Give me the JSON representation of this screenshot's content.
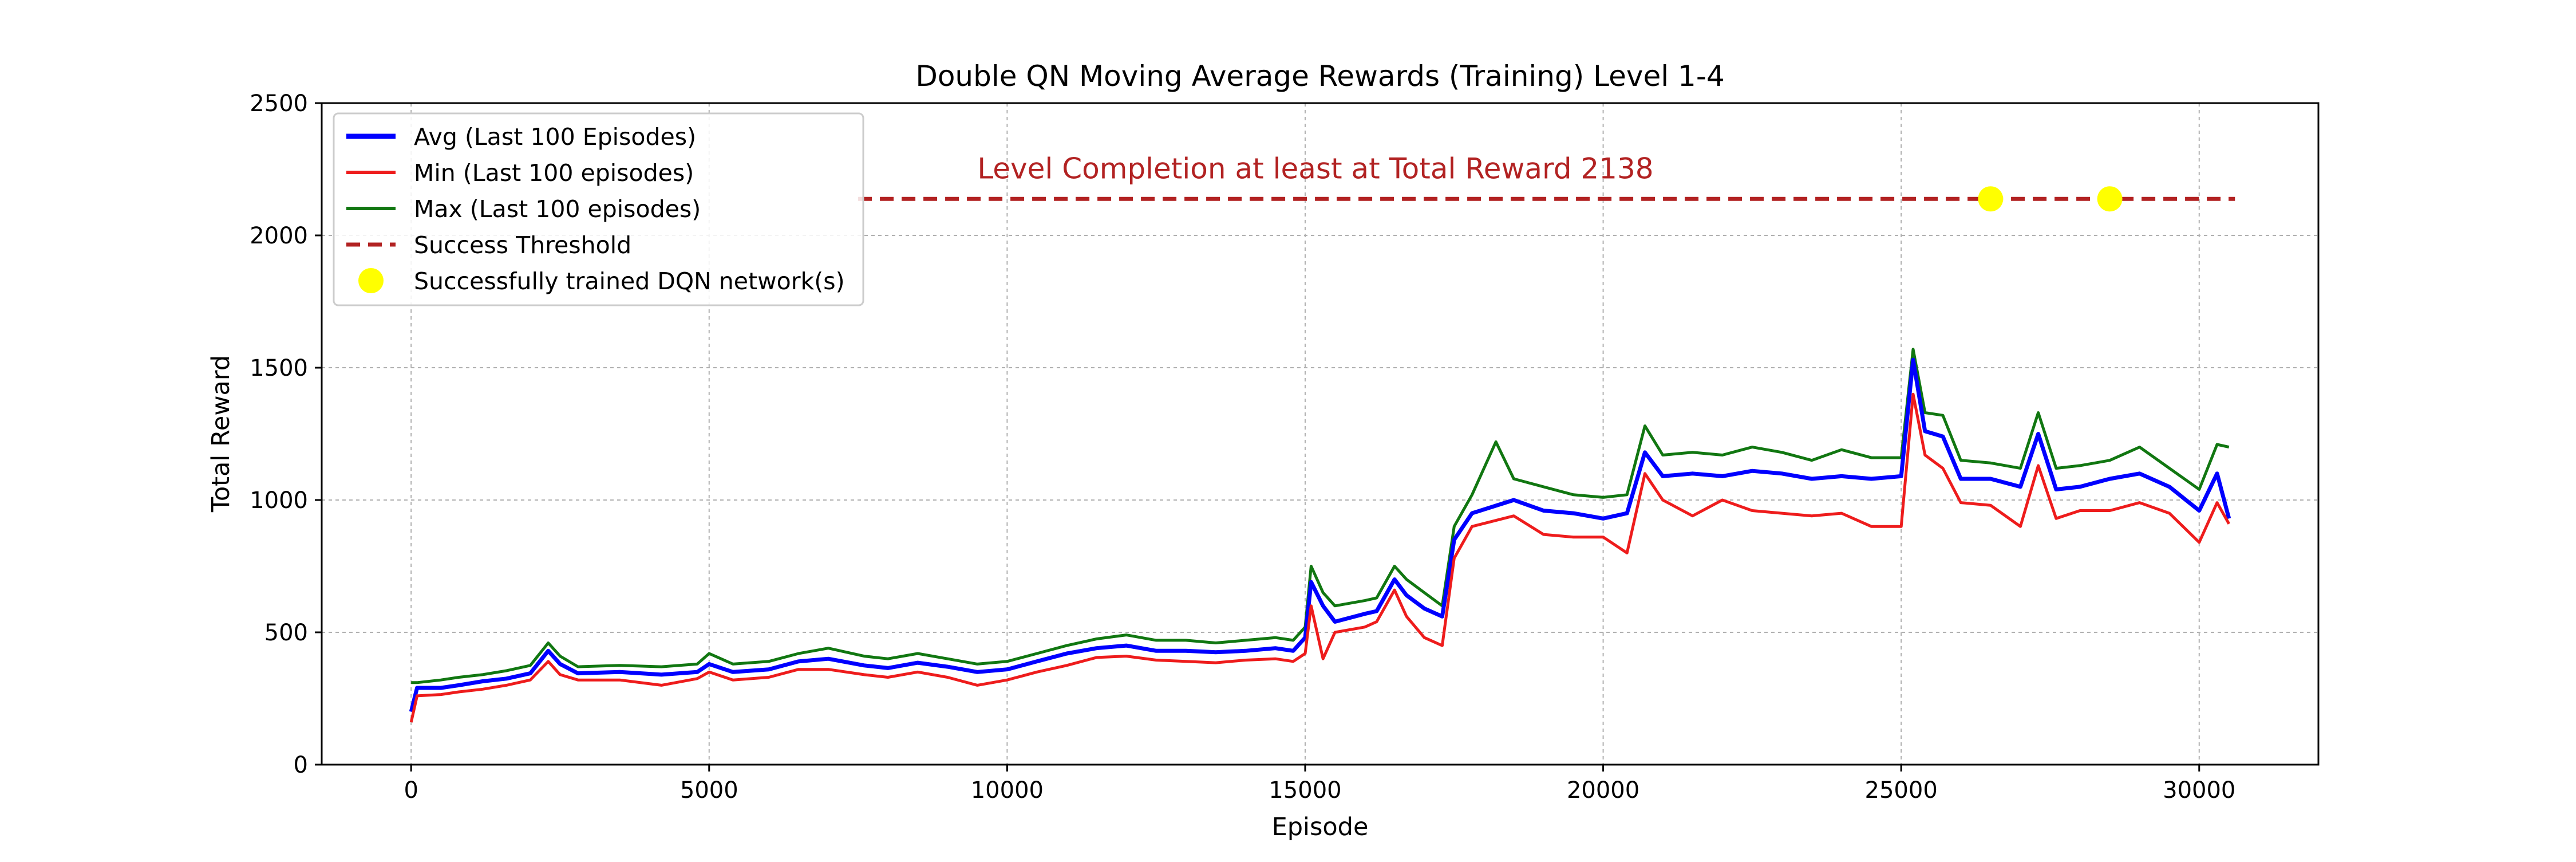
{
  "chart_data": {
    "type": "line",
    "title": "Double QN Moving Average Rewards (Training) Level 1-4",
    "xlabel": "Episode",
    "ylabel": "Total Reward",
    "xlim": [
      -1500,
      32000
    ],
    "ylim": [
      0,
      2500
    ],
    "x_ticks": [
      0,
      5000,
      10000,
      15000,
      20000,
      25000,
      30000
    ],
    "y_ticks": [
      0,
      500,
      1000,
      1500,
      2000,
      2500
    ],
    "grid": true,
    "legend_position": "upper-left",
    "threshold": {
      "value": 2138,
      "x_start": 7500,
      "x_end": 30600,
      "color": "#b22222"
    },
    "annotation": {
      "text": "Level Completion at least at Total Reward 2138",
      "x": 9500,
      "y": 2215,
      "color": "#b22222"
    },
    "legend": [
      {
        "label": "Avg (Last 100 Episodes)",
        "kind": "line",
        "color": "#0000ff"
      },
      {
        "label": "Min (Last 100 episodes)",
        "kind": "line",
        "color": "#ee1c1c"
      },
      {
        "label": "Max (Last 100 episodes)",
        "kind": "line",
        "color": "#117711"
      },
      {
        "label": "Success Threshold",
        "kind": "dash",
        "color": "#b22222"
      },
      {
        "label": "Successfully trained DQN network(s)",
        "kind": "dot",
        "color": "#ffff00"
      }
    ],
    "success_markers": [
      {
        "x": 26500,
        "y": 2138
      },
      {
        "x": 28500,
        "y": 2138
      }
    ],
    "series": [
      {
        "name": "Avg (Last 100 Episodes)",
        "color": "#0000ff",
        "points": [
          [
            0,
            200
          ],
          [
            100,
            290
          ],
          [
            500,
            290
          ],
          [
            800,
            300
          ],
          [
            1200,
            315
          ],
          [
            1600,
            325
          ],
          [
            2000,
            345
          ],
          [
            2300,
            430
          ],
          [
            2500,
            380
          ],
          [
            2800,
            345
          ],
          [
            3500,
            350
          ],
          [
            4200,
            340
          ],
          [
            4800,
            350
          ],
          [
            5000,
            380
          ],
          [
            5400,
            350
          ],
          [
            6000,
            360
          ],
          [
            6500,
            390
          ],
          [
            7000,
            400
          ],
          [
            7600,
            375
          ],
          [
            8000,
            365
          ],
          [
            8500,
            385
          ],
          [
            9000,
            370
          ],
          [
            9500,
            350
          ],
          [
            10000,
            360
          ],
          [
            10500,
            390
          ],
          [
            11000,
            420
          ],
          [
            11500,
            440
          ],
          [
            12000,
            450
          ],
          [
            12500,
            430
          ],
          [
            13000,
            430
          ],
          [
            13500,
            425
          ],
          [
            14000,
            430
          ],
          [
            14500,
            440
          ],
          [
            14800,
            430
          ],
          [
            15000,
            480
          ],
          [
            15100,
            690
          ],
          [
            15300,
            600
          ],
          [
            15500,
            540
          ],
          [
            16000,
            570
          ],
          [
            16200,
            580
          ],
          [
            16500,
            700
          ],
          [
            16700,
            640
          ],
          [
            17000,
            590
          ],
          [
            17300,
            560
          ],
          [
            17500,
            850
          ],
          [
            17800,
            950
          ],
          [
            18500,
            1000
          ],
          [
            19000,
            960
          ],
          [
            19500,
            950
          ],
          [
            20000,
            930
          ],
          [
            20400,
            950
          ],
          [
            20700,
            1180
          ],
          [
            21000,
            1090
          ],
          [
            21500,
            1100
          ],
          [
            22000,
            1090
          ],
          [
            22500,
            1110
          ],
          [
            23000,
            1100
          ],
          [
            23500,
            1080
          ],
          [
            24000,
            1090
          ],
          [
            24500,
            1080
          ],
          [
            25000,
            1090
          ],
          [
            25200,
            1530
          ],
          [
            25400,
            1260
          ],
          [
            25700,
            1240
          ],
          [
            26000,
            1080
          ],
          [
            26500,
            1080
          ],
          [
            27000,
            1050
          ],
          [
            27300,
            1250
          ],
          [
            27600,
            1040
          ],
          [
            28000,
            1050
          ],
          [
            28500,
            1080
          ],
          [
            29000,
            1100
          ],
          [
            29500,
            1050
          ],
          [
            30000,
            960
          ],
          [
            30300,
            1100
          ],
          [
            30500,
            930
          ]
        ]
      },
      {
        "name": "Min (Last 100 episodes)",
        "color": "#ee1c1c",
        "points": [
          [
            0,
            160
          ],
          [
            100,
            260
          ],
          [
            500,
            265
          ],
          [
            800,
            275
          ],
          [
            1200,
            285
          ],
          [
            1600,
            300
          ],
          [
            2000,
            320
          ],
          [
            2300,
            390
          ],
          [
            2500,
            340
          ],
          [
            2800,
            320
          ],
          [
            3500,
            320
          ],
          [
            4200,
            300
          ],
          [
            4800,
            325
          ],
          [
            5000,
            350
          ],
          [
            5400,
            320
          ],
          [
            6000,
            330
          ],
          [
            6500,
            360
          ],
          [
            7000,
            360
          ],
          [
            7600,
            340
          ],
          [
            8000,
            330
          ],
          [
            8500,
            350
          ],
          [
            9000,
            330
          ],
          [
            9500,
            300
          ],
          [
            10000,
            320
          ],
          [
            10500,
            350
          ],
          [
            11000,
            375
          ],
          [
            11500,
            405
          ],
          [
            12000,
            410
          ],
          [
            12500,
            395
          ],
          [
            13000,
            390
          ],
          [
            13500,
            385
          ],
          [
            14000,
            395
          ],
          [
            14500,
            400
          ],
          [
            14800,
            390
          ],
          [
            15000,
            420
          ],
          [
            15100,
            600
          ],
          [
            15300,
            400
          ],
          [
            15500,
            500
          ],
          [
            16000,
            520
          ],
          [
            16200,
            540
          ],
          [
            16500,
            660
          ],
          [
            16700,
            560
          ],
          [
            17000,
            480
          ],
          [
            17300,
            450
          ],
          [
            17500,
            780
          ],
          [
            17800,
            900
          ],
          [
            18500,
            940
          ],
          [
            19000,
            870
          ],
          [
            19500,
            860
          ],
          [
            20000,
            860
          ],
          [
            20400,
            800
          ],
          [
            20700,
            1100
          ],
          [
            21000,
            1000
          ],
          [
            21500,
            940
          ],
          [
            22000,
            1000
          ],
          [
            22500,
            960
          ],
          [
            23000,
            950
          ],
          [
            23500,
            940
          ],
          [
            24000,
            950
          ],
          [
            24500,
            900
          ],
          [
            25000,
            900
          ],
          [
            25200,
            1400
          ],
          [
            25400,
            1170
          ],
          [
            25700,
            1120
          ],
          [
            26000,
            990
          ],
          [
            26500,
            980
          ],
          [
            27000,
            900
          ],
          [
            27300,
            1130
          ],
          [
            27600,
            930
          ],
          [
            28000,
            960
          ],
          [
            28500,
            960
          ],
          [
            29000,
            990
          ],
          [
            29500,
            950
          ],
          [
            30000,
            840
          ],
          [
            30300,
            990
          ],
          [
            30500,
            910
          ]
        ]
      },
      {
        "name": "Max (Last 100 episodes)",
        "color": "#117711",
        "points": [
          [
            0,
            310
          ],
          [
            100,
            310
          ],
          [
            500,
            320
          ],
          [
            800,
            330
          ],
          [
            1200,
            340
          ],
          [
            1600,
            355
          ],
          [
            2000,
            375
          ],
          [
            2300,
            460
          ],
          [
            2500,
            410
          ],
          [
            2800,
            370
          ],
          [
            3500,
            375
          ],
          [
            4200,
            370
          ],
          [
            4800,
            380
          ],
          [
            5000,
            420
          ],
          [
            5400,
            380
          ],
          [
            6000,
            390
          ],
          [
            6500,
            420
          ],
          [
            7000,
            440
          ],
          [
            7600,
            410
          ],
          [
            8000,
            400
          ],
          [
            8500,
            420
          ],
          [
            9000,
            400
          ],
          [
            9500,
            380
          ],
          [
            10000,
            390
          ],
          [
            10500,
            420
          ],
          [
            11000,
            450
          ],
          [
            11500,
            475
          ],
          [
            12000,
            490
          ],
          [
            12500,
            470
          ],
          [
            13000,
            470
          ],
          [
            13500,
            460
          ],
          [
            14000,
            470
          ],
          [
            14500,
            480
          ],
          [
            14800,
            470
          ],
          [
            15000,
            520
          ],
          [
            15100,
            750
          ],
          [
            15300,
            650
          ],
          [
            15500,
            600
          ],
          [
            16000,
            620
          ],
          [
            16200,
            630
          ],
          [
            16500,
            750
          ],
          [
            16700,
            700
          ],
          [
            17000,
            650
          ],
          [
            17300,
            600
          ],
          [
            17500,
            900
          ],
          [
            17800,
            1020
          ],
          [
            18200,
            1220
          ],
          [
            18500,
            1080
          ],
          [
            19000,
            1050
          ],
          [
            19500,
            1020
          ],
          [
            20000,
            1010
          ],
          [
            20400,
            1020
          ],
          [
            20700,
            1280
          ],
          [
            21000,
            1170
          ],
          [
            21500,
            1180
          ],
          [
            22000,
            1170
          ],
          [
            22500,
            1200
          ],
          [
            23000,
            1180
          ],
          [
            23500,
            1150
          ],
          [
            24000,
            1190
          ],
          [
            24500,
            1160
          ],
          [
            25000,
            1160
          ],
          [
            25200,
            1570
          ],
          [
            25400,
            1330
          ],
          [
            25700,
            1320
          ],
          [
            26000,
            1150
          ],
          [
            26500,
            1140
          ],
          [
            27000,
            1120
          ],
          [
            27300,
            1330
          ],
          [
            27600,
            1120
          ],
          [
            28000,
            1130
          ],
          [
            28500,
            1150
          ],
          [
            29000,
            1200
          ],
          [
            29500,
            1120
          ],
          [
            30000,
            1040
          ],
          [
            30300,
            1210
          ],
          [
            30500,
            1200
          ]
        ]
      }
    ]
  }
}
